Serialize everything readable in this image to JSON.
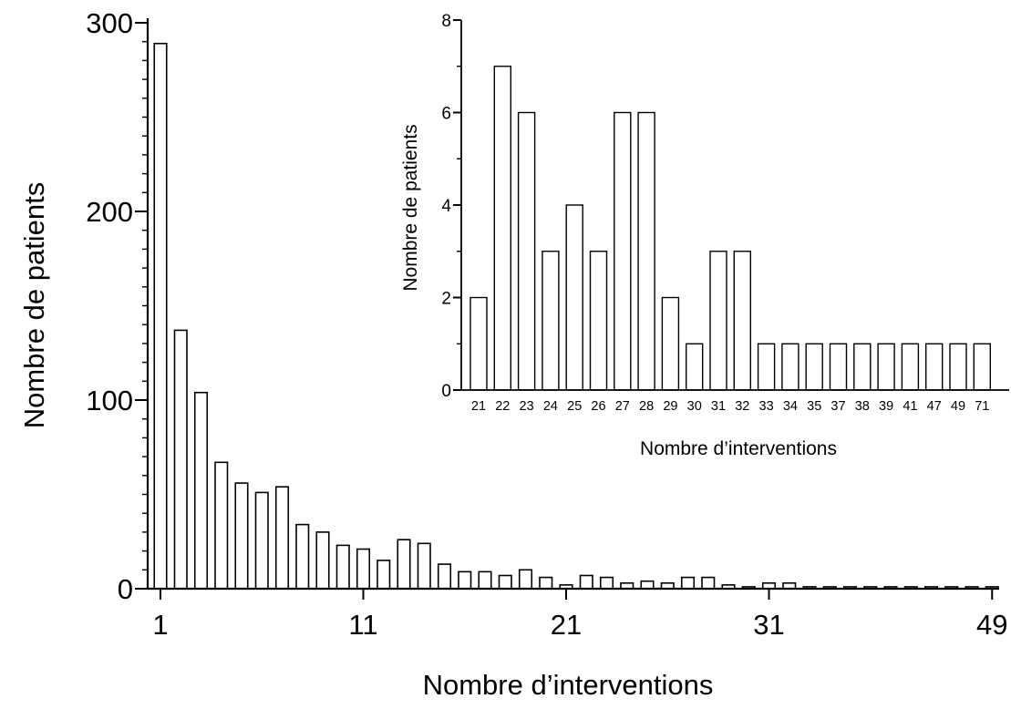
{
  "chart_data": [
    {
      "type": "bar",
      "xlabel": "Nombre d’interventions",
      "ylabel": "Nombre de patients",
      "ylim": [
        0,
        300
      ],
      "yticks": [
        "0",
        "100",
        "200",
        "300"
      ],
      "xtick_labels": [
        "1",
        "11",
        "21",
        "31",
        "49"
      ],
      "grid": false,
      "series": [
        {
          "values": [
            289,
            137,
            104,
            67,
            56,
            51,
            54,
            34,
            30,
            23,
            21,
            15,
            26,
            24,
            13,
            9,
            9,
            7,
            10,
            6,
            2,
            7,
            6,
            3,
            4,
            3,
            6,
            6,
            2,
            1,
            3,
            3,
            1,
            1,
            1,
            1,
            1,
            1,
            1,
            1,
            1,
            1
          ]
        }
      ]
    },
    {
      "type": "bar",
      "inset": true,
      "categories": [
        "21",
        "22",
        "23",
        "24",
        "25",
        "26",
        "27",
        "28",
        "29",
        "30",
        "31",
        "32",
        "33",
        "34",
        "35",
        "37",
        "38",
        "39",
        "41",
        "47",
        "49",
        "71"
      ],
      "values": [
        2,
        7,
        6,
        3,
        4,
        3,
        6,
        6,
        2,
        1,
        3,
        3,
        1,
        1,
        1,
        1,
        1,
        1,
        1,
        1,
        1,
        1
      ],
      "xlabel": "Nombre d’interventions",
      "ylabel": "Nombre de patients",
      "ylim": [
        0,
        8
      ],
      "yticks": [
        "0",
        "2",
        "4",
        "6",
        "8"
      ],
      "grid": false
    }
  ]
}
